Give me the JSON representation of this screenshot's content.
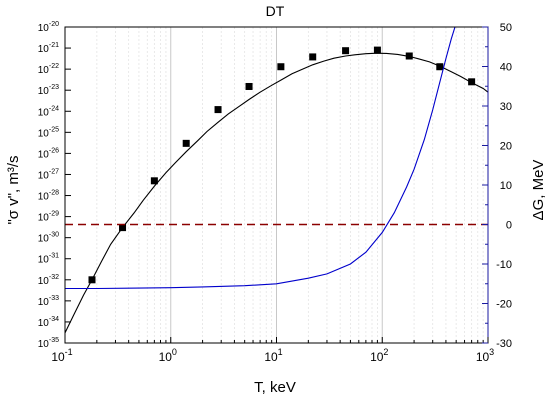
{
  "chart_data": {
    "type": "line",
    "title": "DT",
    "xlabel": "T, keV",
    "ylabel_left": "\"σ v\", m³/s",
    "ylabel_right": "ΔG, MeV",
    "x_scale": "log",
    "y_left_scale": "log",
    "xlim": [
      0.1,
      1000
    ],
    "ylim_left": [
      1e-35,
      1e-20
    ],
    "ylim_right": [
      -30,
      50
    ],
    "x_ticks": [
      {
        "value": 0.1,
        "base": "10",
        "exp": "-1"
      },
      {
        "value": 1,
        "base": "10",
        "exp": "0"
      },
      {
        "value": 10,
        "base": "10",
        "exp": "1"
      },
      {
        "value": 100,
        "base": "10",
        "exp": "2"
      },
      {
        "value": 1000,
        "base": "10",
        "exp": "3"
      }
    ],
    "y_left_ticks": [
      {
        "value": -35,
        "base": "10",
        "exp": "-35"
      },
      {
        "value": -34,
        "base": "10",
        "exp": "-34"
      },
      {
        "value": -33,
        "base": "10",
        "exp": "-33"
      },
      {
        "value": -32,
        "base": "10",
        "exp": "-32"
      },
      {
        "value": -31,
        "base": "10",
        "exp": "-31"
      },
      {
        "value": -30,
        "base": "10",
        "exp": "-30"
      },
      {
        "value": -29,
        "base": "10",
        "exp": "-29"
      },
      {
        "value": -28,
        "base": "10",
        "exp": "-28"
      },
      {
        "value": -27,
        "base": "10",
        "exp": "-27"
      },
      {
        "value": -26,
        "base": "10",
        "exp": "-26"
      },
      {
        "value": -25,
        "base": "10",
        "exp": "-25"
      },
      {
        "value": -24,
        "base": "10",
        "exp": "-24"
      },
      {
        "value": -23,
        "base": "10",
        "exp": "-23"
      },
      {
        "value": -22,
        "base": "10",
        "exp": "-22"
      },
      {
        "value": -21,
        "base": "10",
        "exp": "-21"
      },
      {
        "value": -20,
        "base": "10",
        "exp": "-20"
      }
    ],
    "y_right_ticks": [
      "-30",
      "-20",
      "-10",
      "0",
      "10",
      "20",
      "30",
      "40",
      "50"
    ],
    "grid": "vertical major and minor lines",
    "series": [
      {
        "axis": "left",
        "color": "#000000",
        "marker": "square",
        "x": [
          0.1,
          0.12,
          0.15,
          0.18,
          0.22,
          0.27,
          0.35,
          0.45,
          0.55,
          0.7,
          0.9,
          1.1,
          1.4,
          1.8,
          2.2,
          2.8,
          3.5,
          4.5,
          5.5,
          7,
          9,
          11,
          14,
          18,
          22,
          28,
          35,
          45,
          55,
          70,
          90,
          110,
          140,
          180,
          220,
          280,
          350,
          450,
          550,
          700,
          900,
          1000
        ],
        "y": [
          3e-35,
          2e-34,
          1.9e-33,
          1e-32,
          7e-32,
          4.8e-31,
          3e-30,
          1.5e-29,
          6e-29,
          2.8e-28,
          1.2e-27,
          3.5e-27,
          1.2e-26,
          4e-26,
          1.1e-25,
          3e-25,
          7.5e-25,
          1.8e-24,
          3.6e-24,
          8e-24,
          1.7e-23,
          3e-23,
          6e-23,
          1.05e-22,
          1.6e-22,
          2.4e-22,
          3.3e-22,
          4.2e-22,
          4.8e-22,
          5.4e-22,
          5.7e-22,
          5.6e-22,
          5e-22,
          4e-22,
          3.1e-22,
          2.2e-22,
          1.4e-22,
          7.5e-23,
          4.5e-23,
          2.3e-23,
          1.2e-23,
          8e-24
        ],
        "marker_x": [
          0.18,
          0.35,
          0.7,
          1.4,
          2.8,
          5.5,
          11,
          22,
          45,
          90,
          180,
          350,
          700
        ],
        "marker_y": [
          1e-32,
          3e-30,
          5e-28,
          3e-26,
          1.2e-24,
          1.5e-23,
          1.3e-22,
          3.8e-22,
          7.5e-22,
          8e-22,
          4.2e-22,
          1.3e-22,
          2.5e-23
        ]
      },
      {
        "axis": "right",
        "color": "#0000cc",
        "x": [
          0.1,
          0.2,
          0.5,
          1,
          2,
          5,
          10,
          20,
          30,
          50,
          70,
          100,
          130,
          170,
          200,
          250,
          300,
          350,
          400,
          450,
          500
        ],
        "y": [
          -16.2,
          -16.2,
          -16.1,
          -16.0,
          -15.8,
          -15.5,
          -15.0,
          -13.6,
          -12.5,
          -10.0,
          -7.0,
          -2.0,
          3.0,
          9.5,
          14.0,
          21.5,
          29.0,
          36.0,
          42.0,
          47.0,
          51.0
        ]
      },
      {
        "axis": "right",
        "color": "#8b0000",
        "style": "dashed",
        "x": [
          0.1,
          1000
        ],
        "y": [
          0,
          0
        ]
      }
    ]
  }
}
